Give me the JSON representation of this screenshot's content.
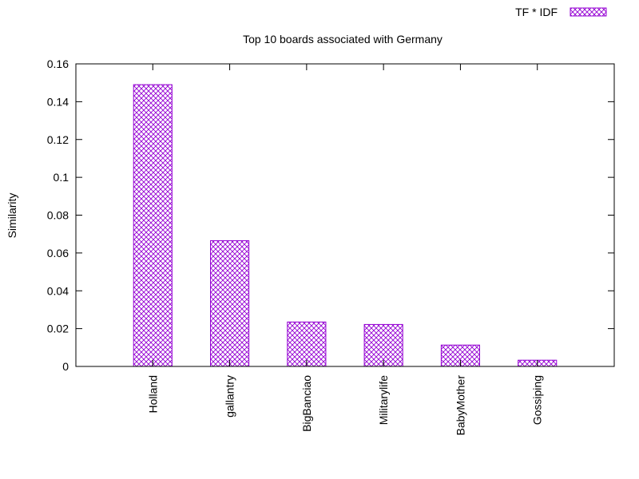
{
  "chart_data": {
    "type": "bar",
    "title": "Top 10 boards associated with Germany",
    "xlabel": "",
    "ylabel": "Similarity",
    "ylim": [
      0,
      0.16
    ],
    "yticks": [
      0,
      0.02,
      0.04,
      0.06,
      0.08,
      0.1,
      0.12,
      0.14,
      0.16
    ],
    "ytick_labels": [
      "0",
      "0.02",
      "0.04",
      "0.06",
      "0.08",
      "0.1",
      "0.12",
      "0.14",
      "0.16"
    ],
    "categories": [
      "Holland",
      "gallantry",
      "BigBanciao",
      "Militarylife",
      "BabyMother",
      "Gossiping"
    ],
    "series": [
      {
        "name": "TF * IDF",
        "values": [
          0.149,
          0.0665,
          0.0235,
          0.0222,
          0.0113,
          0.0033
        ]
      }
    ],
    "legend_position": "top-right",
    "grid": false,
    "colors": {
      "bar": "#9400d3",
      "axis": "#000000"
    }
  }
}
